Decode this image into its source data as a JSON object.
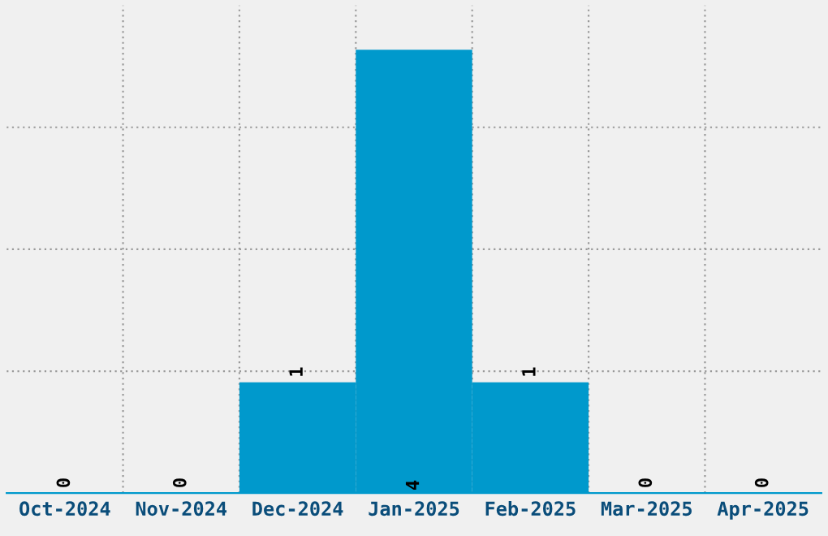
{
  "chart_data": {
    "type": "bar",
    "categories": [
      "Oct-2024",
      "Nov-2024",
      "Dec-2024",
      "Jan-2025",
      "Feb-2025",
      "Mar-2025",
      "Apr-2025"
    ],
    "values": [
      0,
      0,
      1,
      4,
      1,
      0,
      0
    ],
    "color": "#0099cc",
    "data_labels": true,
    "ylim": [
      0,
      4.4
    ],
    "yticks": [
      {
        "value": 1.1,
        "label": null
      },
      {
        "value": 2.2,
        "label": null
      },
      {
        "value": 3.3,
        "label": null
      }
    ],
    "tick_labels": "x",
    "grid": true,
    "legend": false
  }
}
